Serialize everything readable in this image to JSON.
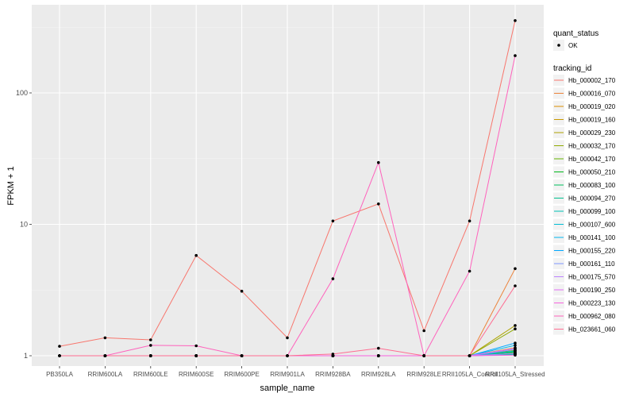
{
  "chart_data": {
    "type": "line",
    "xlabel": "sample_name",
    "ylabel": "FPKM + 1",
    "y_scale": "log10",
    "ylim": [
      0.9,
      380
    ],
    "y_ticks": [
      1,
      10,
      100
    ],
    "y_tick_labels": [
      "1",
      "10",
      "100"
    ],
    "categories": [
      "PB350LA",
      "RRIM600LA",
      "RRIM600LE",
      "RRIM600SE",
      "RRIM600PE",
      "RRIM901LA",
      "RRIM928BA",
      "RRIM928LA",
      "RRIM928LE",
      "RRII105LA_Control",
      "RRII105LA_Stressed"
    ],
    "legend_position": "right",
    "legend_shape": {
      "title": "quant_status",
      "entries": [
        "OK"
      ]
    },
    "legend_color_title": "tracking_id",
    "series": [
      {
        "name": "Hb_000002_170",
        "color": "#F8766D",
        "values": [
          1.18,
          1.37,
          1.32,
          5.8,
          3.1,
          1.37,
          10.6,
          14.3,
          1.55,
          10.6,
          355
        ]
      },
      {
        "name": "Hb_000016_070",
        "color": "#EC8239",
        "values": [
          1,
          1,
          1,
          1,
          1,
          1,
          1,
          1,
          1,
          1,
          4.6
        ]
      },
      {
        "name": "Hb_000019_020",
        "color": "#DB8E00",
        "values": [
          1,
          1,
          1,
          1,
          1,
          1,
          1,
          1,
          1,
          1,
          1.15
        ]
      },
      {
        "name": "Hb_000019_160",
        "color": "#C79800",
        "values": [
          1,
          1,
          1,
          1,
          1,
          1,
          1,
          1,
          1,
          1,
          1.1
        ]
      },
      {
        "name": "Hb_000029_230",
        "color": "#AEA200",
        "values": [
          1,
          1,
          1,
          1,
          1,
          1,
          1,
          1,
          1,
          1,
          1.7
        ]
      },
      {
        "name": "Hb_000032_170",
        "color": "#8FAA00",
        "values": [
          1,
          1,
          1,
          1,
          1,
          1,
          1,
          1,
          1,
          1,
          1.6
        ]
      },
      {
        "name": "Hb_000042_170",
        "color": "#64B200",
        "values": [
          1,
          1,
          1,
          1,
          1,
          1,
          1,
          1,
          1,
          1,
          1.05
        ]
      },
      {
        "name": "Hb_000050_210",
        "color": "#00B81B",
        "values": [
          1,
          1,
          1,
          1,
          1,
          1,
          1,
          1,
          1,
          1,
          1.08
        ]
      },
      {
        "name": "Hb_000083_100",
        "color": "#00BD5C",
        "values": [
          1,
          1,
          1,
          1,
          1,
          1,
          1,
          1,
          1,
          1,
          1.03
        ]
      },
      {
        "name": "Hb_000094_270",
        "color": "#00C08E",
        "values": [
          1,
          1,
          1,
          1,
          1,
          1,
          1,
          1,
          1,
          1,
          1.06
        ]
      },
      {
        "name": "Hb_000099_100",
        "color": "#00C1B7",
        "values": [
          1,
          1,
          1,
          1,
          1,
          1,
          1,
          1,
          1,
          1,
          1.02
        ]
      },
      {
        "name": "Hb_000107_600",
        "color": "#00BDD4",
        "values": [
          1,
          1,
          1,
          1,
          1,
          1,
          1,
          1,
          1,
          1,
          1.09
        ]
      },
      {
        "name": "Hb_000141_100",
        "color": "#00B5EE",
        "values": [
          1,
          1,
          1,
          1,
          1,
          1,
          1,
          1,
          1,
          1,
          1.2
        ]
      },
      {
        "name": "Hb_000155_220",
        "color": "#00A7FF",
        "values": [
          1,
          1,
          1,
          1,
          1,
          1,
          1,
          1,
          1,
          1,
          1.25
        ]
      },
      {
        "name": "Hb_000161_110",
        "color": "#7F96FF",
        "values": [
          1,
          1,
          1,
          1,
          1,
          1,
          1,
          1,
          1,
          1,
          1.12
        ]
      },
      {
        "name": "Hb_000175_570",
        "color": "#BC81FF",
        "values": [
          1,
          1,
          1,
          1,
          1,
          1,
          1,
          1,
          1,
          1,
          1.04
        ]
      },
      {
        "name": "Hb_000190_250",
        "color": "#E26EF7",
        "values": [
          1,
          1,
          1,
          1,
          1,
          1,
          1,
          1,
          1,
          1,
          1.14
        ]
      },
      {
        "name": "Hb_000223_130",
        "color": "#F863DF",
        "values": [
          1,
          1,
          1,
          1,
          1,
          1,
          1,
          1,
          1,
          1,
          1.01
        ]
      },
      {
        "name": "Hb_000962_080",
        "color": "#FF62BC",
        "values": [
          1,
          1,
          1.2,
          1.19,
          1,
          1,
          3.85,
          29.5,
          1,
          4.4,
          192
        ]
      },
      {
        "name": "Hb_023661_060",
        "color": "#FF6C91",
        "values": [
          1,
          1,
          1,
          1,
          1,
          1,
          1.03,
          1.14,
          1,
          1,
          3.4
        ]
      }
    ]
  }
}
